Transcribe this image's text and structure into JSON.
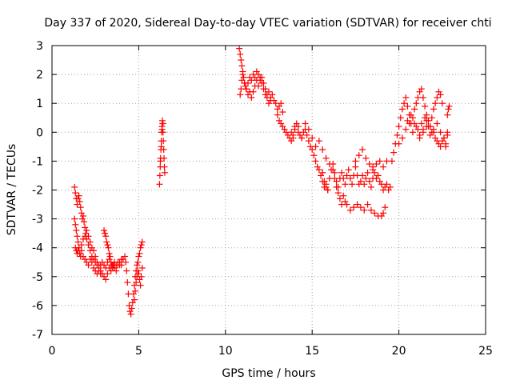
{
  "chart_data": {
    "type": "scatter",
    "title": "Day 337 of 2020, Sidereal Day-to-day VTEC variation (SDTVAR) for receiver chti",
    "xlabel": "GPS time / hours",
    "ylabel": "SDTVAR / TECUs",
    "xlim": [
      0,
      25
    ],
    "ylim": [
      -7,
      3
    ],
    "xticks": [
      0,
      5,
      10,
      15,
      20,
      25
    ],
    "yticks": [
      -7,
      -6,
      -5,
      -4,
      -3,
      -2,
      -1,
      0,
      1,
      2,
      3
    ],
    "grid": true,
    "marker": "+",
    "series_color": "#ff0000",
    "series": [
      {
        "name": "SDTVAR",
        "x": [
          1.3,
          1.35,
          1.4,
          1.45,
          1.5,
          1.55,
          1.6,
          1.65,
          1.7,
          1.75,
          1.8,
          1.85,
          1.9,
          1.95,
          2.0,
          2.1,
          2.2,
          2.3,
          2.4,
          2.5,
          2.6,
          2.7,
          2.8,
          2.9,
          3.0,
          3.1,
          3.2,
          3.3,
          3.4,
          3.5,
          1.35,
          1.4,
          1.45,
          1.5,
          1.55,
          1.6,
          1.7,
          1.8,
          1.9,
          2.0,
          2.1,
          2.2,
          2.3,
          2.4,
          2.5,
          2.6,
          2.7,
          2.8,
          2.9,
          3.0,
          3.1,
          3.2,
          3.3,
          3.4,
          3.5,
          3.6,
          3.7,
          3.8,
          3.9,
          4.0,
          1.3,
          1.35,
          1.4,
          1.45,
          1.5,
          1.55,
          1.6,
          1.65,
          1.7,
          1.8,
          1.9,
          2.0,
          2.1,
          2.2,
          2.3,
          2.4,
          2.5,
          2.6,
          2.7,
          2.8,
          3.0,
          3.05,
          3.1,
          3.15,
          3.2,
          3.25,
          3.3,
          3.35,
          3.4,
          3.45,
          3.5,
          3.55,
          3.6,
          3.7,
          3.8,
          3.9,
          4.0,
          4.1,
          4.2,
          4.25,
          4.3,
          4.35,
          4.4,
          4.45,
          4.5,
          4.55,
          4.6,
          4.65,
          4.7,
          4.75,
          4.8,
          4.85,
          4.9,
          4.95,
          5.0,
          5.05,
          5.1,
          5.15,
          5.2,
          4.75,
          4.8,
          4.85,
          4.9,
          4.95,
          5.0,
          5.05,
          5.1,
          5.15,
          5.2,
          6.2,
          6.22,
          6.24,
          6.26,
          6.28,
          6.3,
          6.32,
          6.34,
          6.36,
          6.38,
          6.4,
          6.42,
          6.44,
          6.46,
          6.48,
          6.5,
          6.25,
          6.3,
          6.35,
          6.4,
          10.8,
          10.85,
          10.9,
          10.95,
          11.0,
          11.05,
          11.1,
          11.15,
          11.2,
          11.3,
          11.4,
          11.5,
          11.6,
          11.7,
          11.8,
          11.9,
          12.0,
          12.1,
          12.2,
          12.3,
          12.4,
          12.5,
          12.6,
          12.7,
          12.8,
          12.9,
          13.0,
          13.1,
          13.2,
          13.3,
          10.85,
          10.9,
          10.95,
          11.0,
          11.1,
          11.2,
          11.3,
          11.4,
          11.5,
          11.6,
          11.7,
          11.8,
          11.9,
          12.0,
          12.1,
          12.2,
          12.3,
          12.4,
          12.5,
          12.6,
          13.0,
          13.1,
          13.2,
          13.3,
          13.4,
          13.5,
          13.6,
          13.7,
          13.8,
          13.9,
          14.0,
          14.1,
          14.2,
          14.3,
          14.4,
          14.5,
          14.6,
          14.7,
          14.8,
          14.9,
          15.0,
          15.1,
          15.2,
          15.3,
          15.4,
          15.5,
          15.6,
          15.7,
          15.8,
          15.9,
          13.8,
          13.9,
          14.0,
          14.2,
          14.4,
          14.6,
          14.8,
          15.0,
          15.2,
          15.4,
          15.6,
          15.8,
          16.0,
          16.2,
          15.6,
          15.7,
          15.8,
          15.9,
          16.0,
          16.1,
          16.2,
          16.3,
          16.4,
          16.5,
          16.6,
          16.7,
          16.8,
          16.9,
          17.0,
          17.1,
          17.2,
          17.3,
          17.4,
          17.5,
          17.6,
          17.7,
          17.8,
          17.9,
          18.0,
          18.1,
          18.2,
          18.3,
          18.4,
          18.5,
          16.3,
          16.4,
          16.5,
          16.6,
          16.7,
          16.8,
          16.9,
          17.0,
          17.2,
          17.4,
          17.6,
          17.8,
          18.0,
          18.2,
          18.4,
          18.6,
          18.8,
          19.0,
          19.1,
          19.2,
          18.5,
          18.6,
          18.7,
          18.8,
          18.9,
          19.0,
          19.1,
          19.2,
          19.3,
          19.4,
          19.5,
          17.5,
          17.7,
          17.9,
          18.1,
          18.3,
          18.5,
          18.7,
          18.9,
          19.1,
          19.3,
          19.6,
          19.7,
          19.8,
          19.9,
          20.0,
          20.1,
          20.2,
          20.3,
          20.4,
          20.5,
          20.6,
          20.7,
          20.8,
          20.9,
          21.0,
          21.1,
          21.2,
          21.3,
          21.4,
          21.5,
          21.6,
          21.7,
          21.8,
          21.9,
          22.0,
          22.1,
          22.2,
          22.3,
          22.4,
          22.5,
          20.0,
          20.2,
          20.4,
          20.6,
          20.8,
          21.0,
          21.2,
          21.4,
          21.6,
          21.8,
          22.0,
          22.2,
          22.4,
          22.6,
          22.8,
          20.5,
          20.7,
          20.9,
          21.1,
          21.3,
          21.5,
          21.7,
          21.9,
          22.1,
          22.3,
          22.5,
          22.7,
          22.8,
          22.85,
          22.9,
          21.2,
          21.4,
          21.6,
          21.8,
          22.0,
          22.2,
          22.4,
          22.6,
          22.7,
          22.8
        ],
        "y": [
          -1.9,
          -2.1,
          -2.3,
          -2.5,
          -2.3,
          -2.2,
          -2.4,
          -2.6,
          -2.8,
          -3.0,
          -2.9,
          -3.1,
          -3.3,
          -3.5,
          -3.4,
          -3.6,
          -3.8,
          -4.0,
          -4.1,
          -4.3,
          -4.5,
          -4.6,
          -4.8,
          -4.9,
          -5.0,
          -5.1,
          -4.9,
          -4.7,
          -4.8,
          -4.6,
          -4.0,
          -4.1,
          -4.2,
          -4.1,
          -4.0,
          -4.2,
          -3.9,
          -3.7,
          -3.6,
          -3.7,
          -3.9,
          -4.1,
          -4.3,
          -4.4,
          -4.5,
          -4.6,
          -4.7,
          -4.6,
          -4.5,
          -4.6,
          -4.7,
          -4.5,
          -4.4,
          -4.6,
          -4.7,
          -4.5,
          -4.6,
          -4.5,
          -4.6,
          -4.4,
          -3.0,
          -3.2,
          -3.4,
          -3.6,
          -3.8,
          -4.0,
          -4.2,
          -4.3,
          -4.1,
          -4.3,
          -4.4,
          -4.5,
          -4.6,
          -4.4,
          -4.5,
          -4.7,
          -4.8,
          -4.9,
          -4.8,
          -4.9,
          -3.4,
          -3.5,
          -3.6,
          -3.8,
          -3.9,
          -4.0,
          -4.2,
          -4.3,
          -4.5,
          -4.6,
          -4.7,
          -4.6,
          -4.7,
          -4.8,
          -4.6,
          -4.5,
          -4.6,
          -4.4,
          -4.3,
          -4.5,
          -4.8,
          -5.2,
          -5.6,
          -6.0,
          -6.2,
          -6.3,
          -6.1,
          -5.9,
          -5.6,
          -5.3,
          -5.0,
          -4.8,
          -4.6,
          -4.5,
          -4.3,
          -4.2,
          -4.0,
          -3.9,
          -3.8,
          -5.8,
          -5.5,
          -5.2,
          -5.0,
          -4.8,
          -4.9,
          -5.1,
          -5.3,
          -5.0,
          -4.7,
          -1.8,
          -1.5,
          -1.2,
          -0.9,
          -0.6,
          -0.3,
          0.0,
          0.2,
          0.4,
          0.3,
          0.0,
          -0.3,
          -0.6,
          -0.9,
          -1.2,
          -1.4,
          -1.0,
          -0.5,
          0.1,
          0.3,
          2.9,
          2.7,
          2.5,
          2.3,
          2.1,
          1.9,
          1.7,
          1.6,
          1.5,
          1.7,
          1.9,
          1.8,
          2.0,
          1.9,
          2.1,
          2.0,
          1.8,
          1.9,
          1.7,
          1.5,
          1.3,
          1.4,
          1.2,
          1.3,
          1.1,
          1.0,
          0.8,
          0.9,
          1.0,
          0.7,
          1.3,
          1.5,
          1.8,
          2.0,
          1.7,
          1.5,
          1.3,
          1.4,
          1.2,
          1.4,
          1.6,
          1.8,
          1.6,
          1.9,
          1.7,
          1.5,
          1.3,
          1.2,
          1.0,
          1.1,
          0.6,
          0.4,
          0.3,
          0.2,
          0.1,
          0.0,
          -0.1,
          -0.2,
          0.0,
          -0.2,
          0.1,
          0.3,
          0.2,
          -0.1,
          -0.2,
          0.0,
          0.1,
          -0.1,
          -0.3,
          -0.5,
          -0.6,
          -0.8,
          -1.0,
          -1.2,
          -1.3,
          -1.5,
          -1.4,
          -1.7,
          -1.9,
          -2.0,
          -0.3,
          -0.1,
          0.2,
          0.0,
          -0.2,
          0.3,
          0.1,
          -0.2,
          -0.5,
          -0.3,
          -0.6,
          -0.9,
          -1.1,
          -1.3,
          -1.7,
          -1.9,
          -1.8,
          -2.0,
          -1.6,
          -1.3,
          -1.1,
          -1.4,
          -1.7,
          -1.9,
          -1.6,
          -1.4,
          -1.6,
          -1.8,
          -1.5,
          -1.3,
          -1.6,
          -1.8,
          -1.5,
          -1.2,
          -1.5,
          -1.8,
          -1.7,
          -1.5,
          -1.8,
          -1.6,
          -1.4,
          -1.7,
          -1.9,
          -1.6,
          -1.6,
          -1.9,
          -2.1,
          -2.3,
          -2.5,
          -2.2,
          -2.4,
          -2.5,
          -2.7,
          -2.6,
          -2.5,
          -2.6,
          -2.7,
          -2.5,
          -2.7,
          -2.8,
          -2.9,
          -2.9,
          -2.8,
          -2.6,
          -1.2,
          -1.4,
          -1.6,
          -1.5,
          -1.7,
          -1.8,
          -2.0,
          -1.9,
          -1.8,
          -2.0,
          -1.9,
          -1.0,
          -0.8,
          -0.6,
          -0.9,
          -1.1,
          -1.3,
          -1.1,
          -1.0,
          -1.2,
          -1.0,
          -1.0,
          -0.7,
          -0.4,
          -0.1,
          0.2,
          0.5,
          0.8,
          1.0,
          1.2,
          0.9,
          0.6,
          0.3,
          0.5,
          0.8,
          1.0,
          1.2,
          1.4,
          1.5,
          1.2,
          0.9,
          0.6,
          0.4,
          0.2,
          0.5,
          0.8,
          1.0,
          1.2,
          1.4,
          1.3,
          1.0,
          -0.4,
          -0.2,
          0.1,
          0.3,
          0.0,
          0.2,
          -0.1,
          0.1,
          0.4,
          0.2,
          0.0,
          -0.3,
          -0.5,
          -0.2,
          0.0,
          0.4,
          0.6,
          0.3,
          0.1,
          0.3,
          0.5,
          0.2,
          0.0,
          -0.2,
          -0.4,
          -0.3,
          -0.5,
          0.6,
          0.8,
          0.9,
          -0.2,
          0.0,
          0.2,
          -0.1,
          0.1,
          0.3,
          0.0,
          -0.2,
          -0.4,
          -0.1
        ]
      }
    ]
  }
}
